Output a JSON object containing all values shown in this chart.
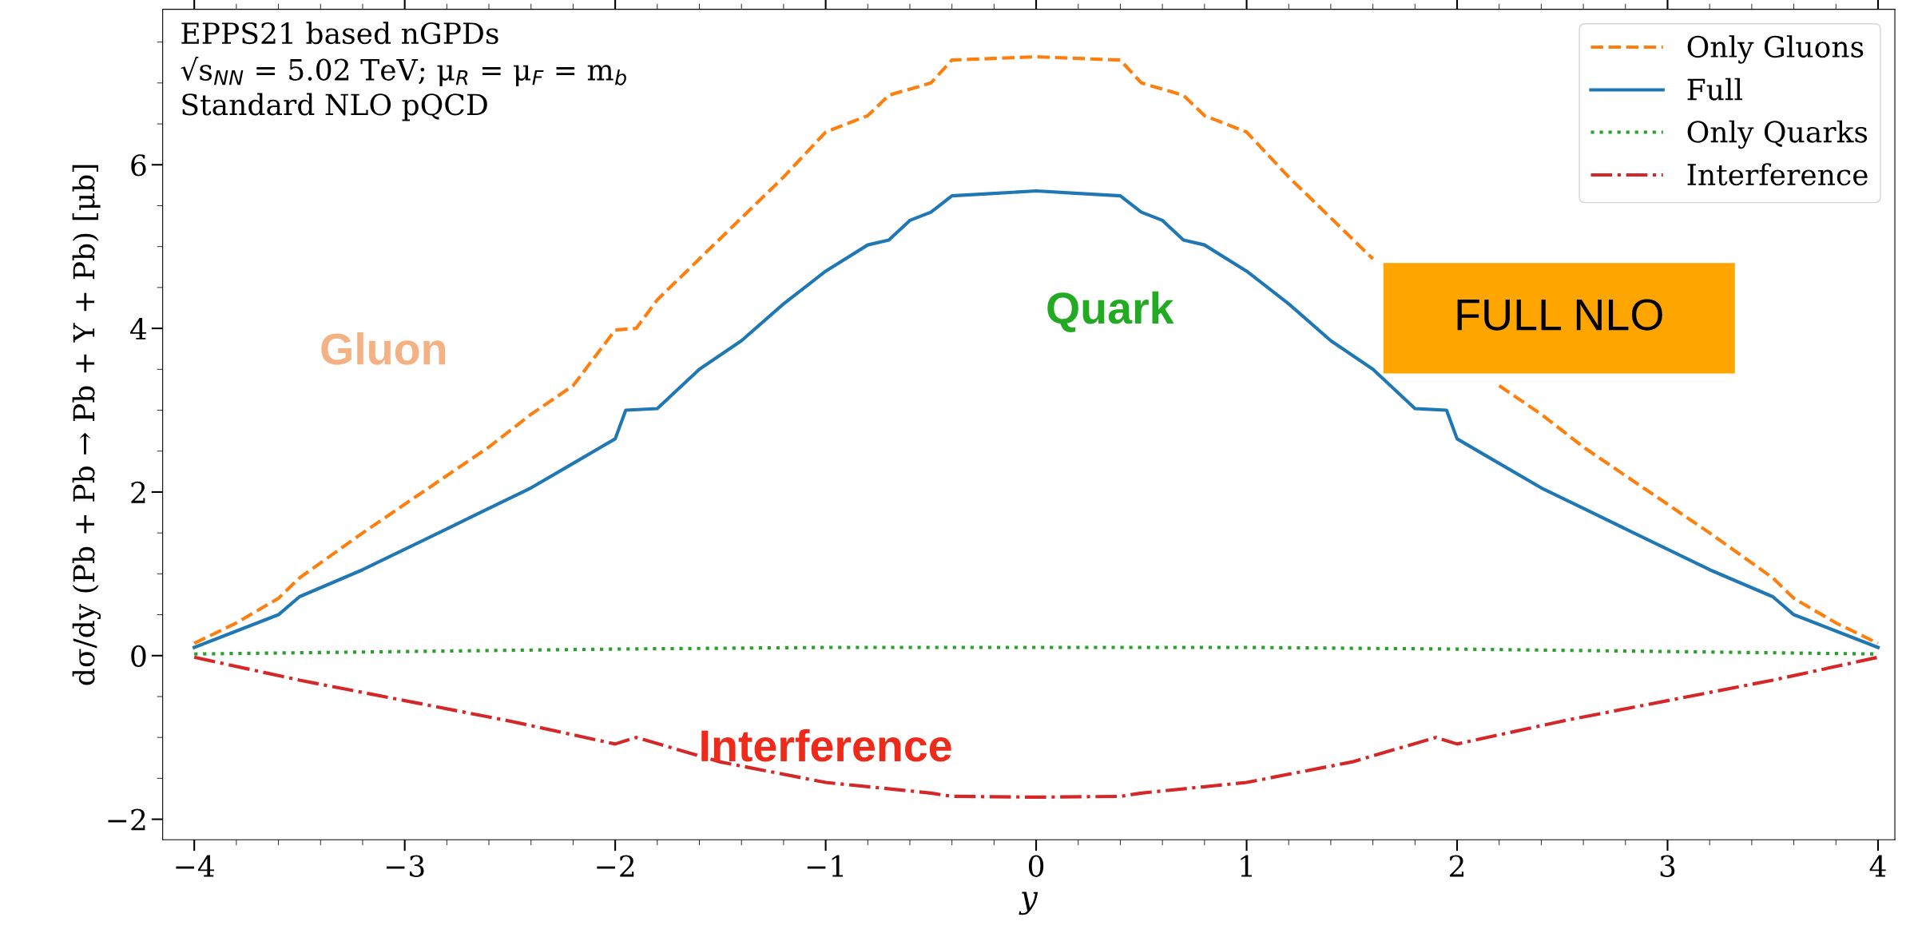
{
  "chart_data": {
    "type": "line",
    "xlabel": "y",
    "ylabel": "dσ/dy (Pb + Pb → Pb + Υ + Pb) [μb]",
    "xlim": [
      -4.15,
      4.08
    ],
    "ylim": [
      -2.25,
      7.9
    ],
    "xticks": [
      {
        "value": -4,
        "label": "−4"
      },
      {
        "value": -3,
        "label": "−3"
      },
      {
        "value": -2,
        "label": "−2"
      },
      {
        "value": -1,
        "label": "−1"
      },
      0,
      1,
      2,
      3,
      4
    ],
    "yticks": [
      {
        "value": -2,
        "label": "−2"
      },
      0,
      2,
      4,
      6
    ],
    "legend": "top right",
    "grid": false,
    "series": [
      {
        "name": "Only Gluons",
        "color": "#ff7f0e",
        "line_style": "dashed",
        "x": [
          -4,
          -3.8,
          -3.6,
          -3.5,
          -3.2,
          -3,
          -2.8,
          -2.6,
          -2.4,
          -2.2,
          -2.0,
          -1.9,
          -1.8,
          -1.6,
          -1.4,
          -1.2,
          -1.0,
          -0.8,
          -0.7,
          -0.5,
          -0.4,
          -0.2,
          0,
          0.2,
          0.4,
          0.5,
          0.7,
          0.8,
          1.0,
          1.2,
          1.4,
          1.6,
          1.8,
          1.9,
          2.0,
          2.2,
          2.4,
          2.6,
          2.8,
          3,
          3.2,
          3.5,
          3.6,
          3.8,
          4
        ],
        "values": [
          0.15,
          0.4,
          0.7,
          0.95,
          1.5,
          1.85,
          2.2,
          2.55,
          2.95,
          3.3,
          3.98,
          4.0,
          4.35,
          4.85,
          5.35,
          5.85,
          6.4,
          6.6,
          6.85,
          7.0,
          7.28,
          7.3,
          7.32,
          7.3,
          7.28,
          7.0,
          6.85,
          6.6,
          6.4,
          5.85,
          5.35,
          4.85,
          null,
          null,
          null,
          3.3,
          2.95,
          2.55,
          2.2,
          1.85,
          1.5,
          0.95,
          0.7,
          0.4,
          0.15
        ]
      },
      {
        "name": "Full",
        "color": "#1f77b4",
        "line_style": "solid",
        "x": [
          -4,
          -3.8,
          -3.6,
          -3.5,
          -3.2,
          -3,
          -2.8,
          -2.6,
          -2.4,
          -2.2,
          -2.0,
          -1.95,
          -1.8,
          -1.6,
          -1.4,
          -1.2,
          -1.0,
          -0.8,
          -0.7,
          -0.6,
          -0.5,
          -0.4,
          -0.2,
          0,
          0.2,
          0.4,
          0.5,
          0.6,
          0.7,
          0.8,
          1.0,
          1.2,
          1.4,
          1.6,
          1.8,
          1.95,
          2.0,
          2.2,
          2.4,
          2.6,
          2.8,
          3,
          3.2,
          3.5,
          3.6,
          3.8,
          4
        ],
        "values": [
          0.1,
          0.3,
          0.5,
          0.72,
          1.05,
          1.3,
          1.55,
          1.8,
          2.05,
          2.35,
          2.65,
          3.0,
          3.02,
          3.5,
          3.85,
          4.3,
          4.7,
          5.02,
          5.08,
          5.32,
          5.42,
          5.62,
          5.65,
          5.68,
          5.65,
          5.62,
          5.42,
          5.32,
          5.08,
          5.02,
          4.7,
          4.3,
          3.85,
          3.5,
          3.02,
          3.0,
          2.65,
          2.35,
          2.05,
          1.8,
          1.55,
          1.3,
          1.05,
          0.72,
          0.5,
          0.3,
          0.1
        ]
      },
      {
        "name": "Only Quarks",
        "color": "#2ca02c",
        "line_style": "dotted",
        "x": [
          -4,
          -3,
          -2,
          -1,
          0,
          1,
          2,
          3,
          4
        ],
        "values": [
          0.02,
          0.05,
          0.08,
          0.1,
          0.1,
          0.1,
          0.08,
          0.05,
          0.02
        ]
      },
      {
        "name": "Interference",
        "color": "#d62728",
        "line_style": "dashdot",
        "x": [
          -4,
          -3.5,
          -3,
          -2.5,
          -2,
          -1.9,
          -1.5,
          -1,
          -0.5,
          -0.4,
          0,
          0.4,
          0.5,
          1,
          1.5,
          1.9,
          2,
          2.5,
          3,
          3.5,
          4
        ],
        "values": [
          -0.02,
          -0.3,
          -0.55,
          -0.8,
          -1.08,
          -1.0,
          -1.3,
          -1.55,
          -1.68,
          -1.72,
          -1.73,
          -1.72,
          -1.68,
          -1.55,
          -1.3,
          -1.0,
          -1.08,
          -0.8,
          -0.55,
          -0.3,
          -0.02
        ]
      }
    ],
    "annotations": [
      "EPPS21 based nGPDs\n√s$_{NN}$ = 5.02 TeV; μ$_{R}$ = μ$_{F}$ = m$_{b}$\nStandard NLO pQCD",
      "Gluon",
      "Quark",
      "Interference",
      "FULL NLO"
    ]
  }
}
